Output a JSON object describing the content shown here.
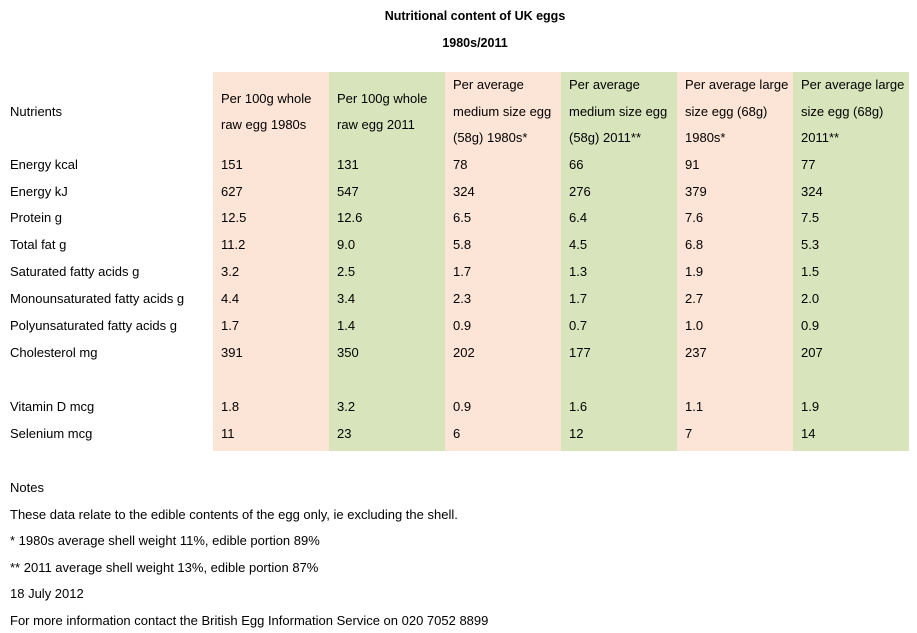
{
  "header": {
    "title": "Nutritional content of UK eggs",
    "subtitle": "1980s/2011"
  },
  "table": {
    "columns": [
      "Nutrients",
      "Per 100g whole raw egg 1980s",
      "Per 100g whole raw egg 2011",
      "Per average medium size egg (58g) 1980s*",
      "Per average medium size egg (58g) 2011**",
      "Per average large size egg (68g) 1980s*",
      "Per average large size egg (68g) 2011**"
    ],
    "rows": [
      [
        "Energy kcal",
        "151",
        "131",
        "78",
        "66",
        "91",
        "77"
      ],
      [
        "Energy kJ",
        "627",
        "547",
        "324",
        "276",
        "379",
        "324"
      ],
      [
        "Protein g",
        "12.5",
        "12.6",
        "6.5",
        "6.4",
        "7.6",
        "7.5"
      ],
      [
        "Total fat g",
        "11.2",
        "9.0",
        "5.8",
        "4.5",
        "6.8",
        "5.3"
      ],
      [
        "Saturated fatty acids g",
        "3.2",
        "2.5",
        "1.7",
        "1.3",
        "1.9",
        "1.5"
      ],
      [
        "Monounsaturated fatty acids g",
        "4.4",
        "3.4",
        "2.3",
        "1.7",
        "2.7",
        "2.0"
      ],
      [
        "Polyunsaturated fatty acids g",
        "1.7",
        "1.4",
        "0.9",
        "0.7",
        "1.0",
        "0.9"
      ],
      [
        "Cholesterol mg",
        "391",
        "350",
        "202",
        "177",
        "237",
        "207"
      ],
      [
        "Vitamin D mcg",
        "1.8",
        "3.2",
        "0.9",
        "1.6",
        "1.1",
        "1.9"
      ],
      [
        "Selenium mcg",
        "11",
        "23",
        "6",
        "12",
        "7",
        "14"
      ]
    ]
  },
  "notes": {
    "heading": "Notes",
    "lines": [
      "These data relate to the edible contents of the egg only, ie excluding the shell.",
      "* 1980s average shell weight 11%, edible portion 89%",
      "** 2011 average shell weight 13%, edible portion 87%",
      "18 July 2012",
      "For more information contact the British Egg Information Service on 020 7052 8899"
    ]
  }
}
